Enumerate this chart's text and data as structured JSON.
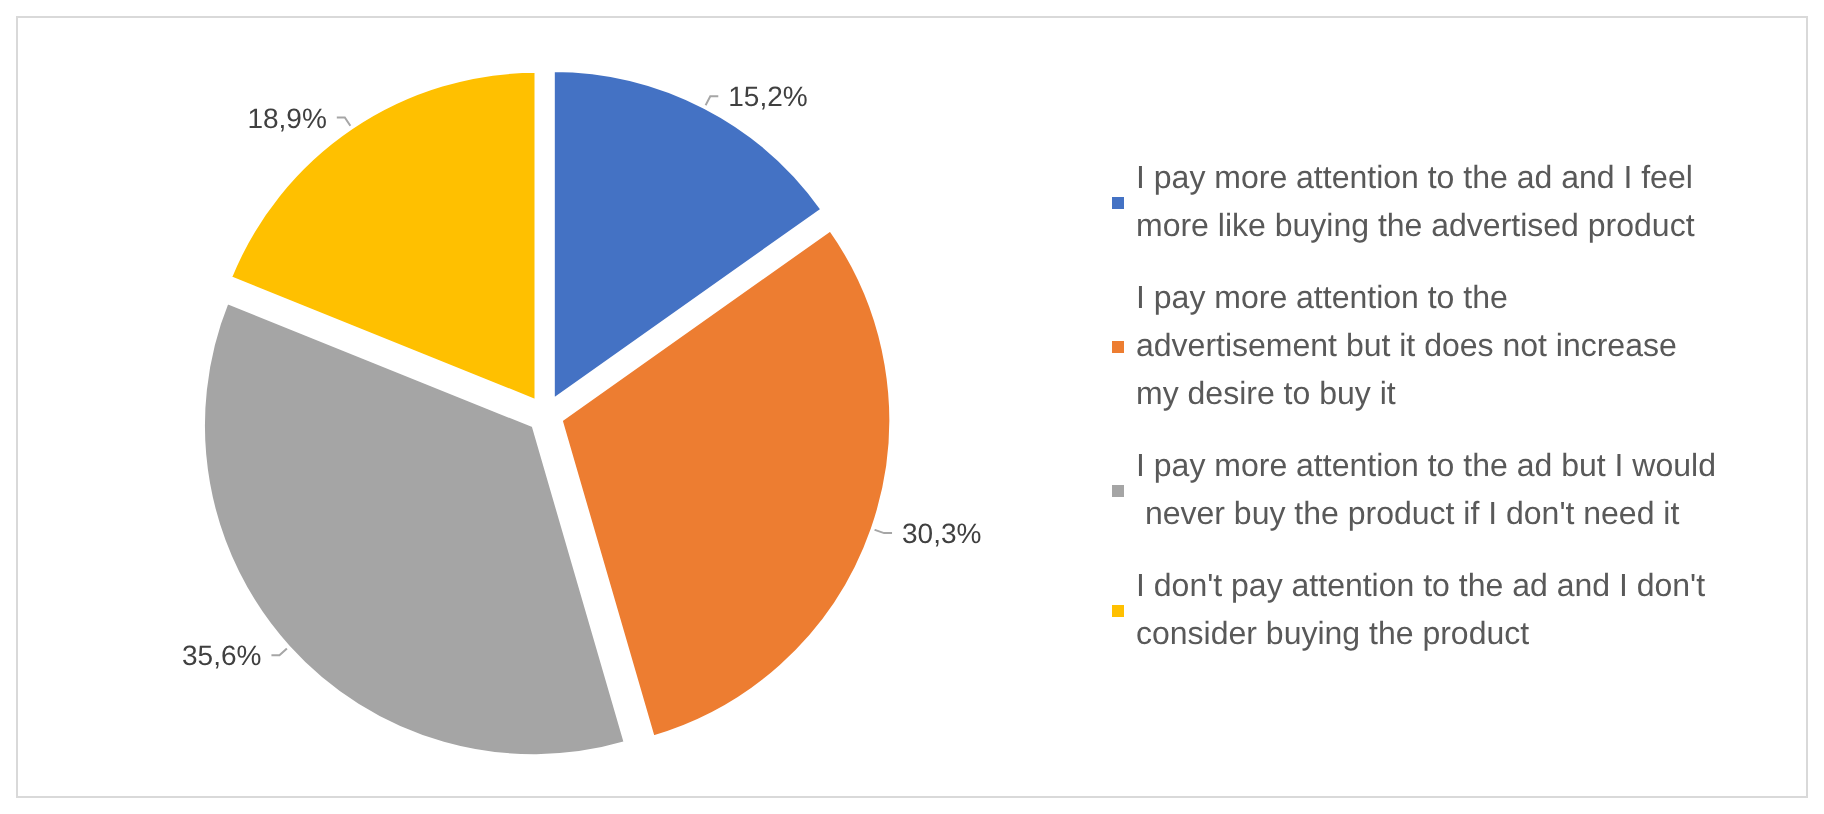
{
  "chart_data": {
    "type": "pie",
    "categories": [
      "I pay more attention to the ad and I feel more like buying the advertised product",
      "I pay more attention to the advertisement but it does not increase my desire to buy it",
      "I pay more attention to the ad but I would never buy the product if I don't need it",
      "I don't pay attention to the ad and I don't consider buying the product"
    ],
    "values": [
      15.2,
      30.3,
      35.6,
      18.9
    ],
    "colors": [
      "#4472c4",
      "#ed7d31",
      "#a5a5a5",
      "#ffc000"
    ],
    "value_labels": [
      "15,2%",
      "30,3%",
      "35,6%",
      "18,9%"
    ],
    "legend": "right"
  }
}
